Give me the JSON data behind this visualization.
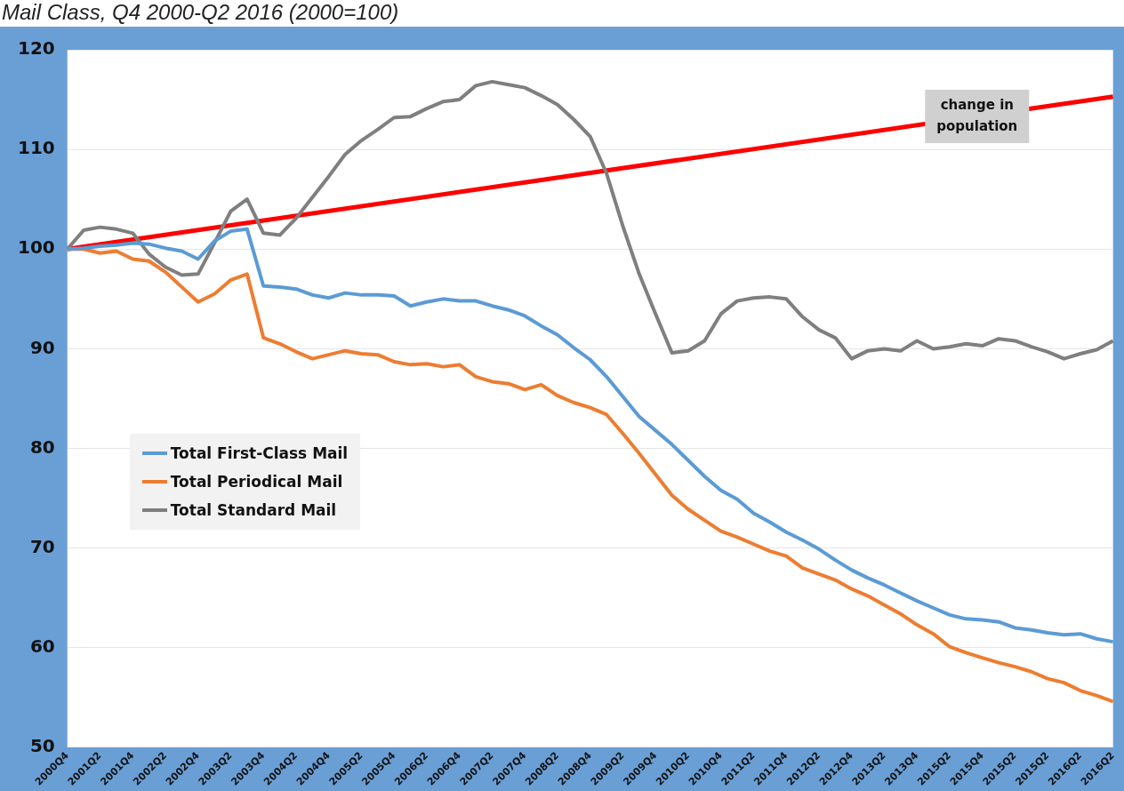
{
  "chart_data": {
    "type": "line",
    "title": "Mail Class, Q4 2000-Q2 2016 (2000=100)",
    "categories": [
      "2000Q4",
      null,
      "2001Q2",
      null,
      "2001Q4",
      null,
      "2002Q2",
      null,
      "2002Q4",
      null,
      "2003Q2",
      null,
      "2003Q4",
      null,
      "2004Q2",
      null,
      "2004Q4",
      null,
      "2005Q2",
      null,
      "2005Q4",
      null,
      "2006Q2",
      null,
      "2006Q4",
      null,
      "2007Q2",
      null,
      "2007Q4",
      null,
      "2008Q2",
      null,
      "2008Q4",
      null,
      "2009Q2",
      null,
      "2009Q4",
      null,
      "2010Q2",
      null,
      "2010Q4",
      null,
      "2011Q2",
      null,
      "2011Q4",
      null,
      "2012Q2",
      null,
      "2012Q4",
      null,
      "2013Q2",
      null,
      "2013Q4",
      null,
      "2015Q2",
      null,
      "2015Q4",
      null,
      "2015Q2",
      null,
      "2015Q2",
      null,
      "2016Q2",
      null,
      "2016Q2"
    ],
    "series": [
      {
        "name": "Total First-Class Mail",
        "color": "#5b9bd5",
        "values": [
          100,
          100.1,
          100.3,
          100.4,
          100.6,
          100.5,
          100.1,
          99.8,
          99.0,
          100.8,
          101.8,
          102.0,
          96.3,
          96.2,
          96.0,
          95.4,
          95.1,
          95.6,
          95.4,
          95.4,
          95.3,
          94.3,
          94.7,
          95.0,
          94.8,
          94.8,
          94.3,
          93.9,
          93.3,
          92.3,
          91.4,
          90.1,
          88.9,
          87.2,
          85.2,
          83.2,
          81.8,
          80.4,
          78.8,
          77.2,
          75.8,
          74.9,
          73.5,
          72.6,
          71.6,
          70.8,
          69.9,
          68.8,
          67.8,
          67.0,
          66.3,
          65.5,
          64.7,
          64.0,
          63.3,
          62.9,
          62.8,
          62.6,
          62.0,
          61.8,
          61.5,
          61.3,
          61.4,
          60.9,
          60.6
        ]
      },
      {
        "name": "Total Periodical Mail",
        "color": "#ed7d31",
        "values": [
          100,
          100,
          99.6,
          99.8,
          99.0,
          98.8,
          97.7,
          96.2,
          94.7,
          95.5,
          96.9,
          97.5,
          91.1,
          90.5,
          89.7,
          89.0,
          89.4,
          89.8,
          89.5,
          89.4,
          88.7,
          88.4,
          88.5,
          88.2,
          88.4,
          87.2,
          86.7,
          86.5,
          85.9,
          86.4,
          85.3,
          84.6,
          84.1,
          83.4,
          81.5,
          79.5,
          77.4,
          75.3,
          73.9,
          72.8,
          71.7,
          71.1,
          70.4,
          69.7,
          69.2,
          68.0,
          67.4,
          66.8,
          65.9,
          65.2,
          64.3,
          63.4,
          62.3,
          61.4,
          60.1,
          59.5,
          59.0,
          58.5,
          58.1,
          57.6,
          56.9,
          56.5,
          55.7,
          55.2,
          54.6
        ]
      },
      {
        "name": "Total Standard Mail",
        "color": "#7f7f7f",
        "values": [
          100,
          101.9,
          102.2,
          102.0,
          101.6,
          99.5,
          98.2,
          97.4,
          97.5,
          100.6,
          103.8,
          105.0,
          101.6,
          101.4,
          103.1,
          105.2,
          107.3,
          109.5,
          110.9,
          112.0,
          113.2,
          113.3,
          114.1,
          114.8,
          115.0,
          116.4,
          116.8,
          116.5,
          116.2,
          115.4,
          114.5,
          113.0,
          111.3,
          107.6,
          102.3,
          97.5,
          93.5,
          89.6,
          89.8,
          90.8,
          93.5,
          94.8,
          95.1,
          95.2,
          95.0,
          93.2,
          91.9,
          91.1,
          89.0,
          89.8,
          90.0,
          89.8,
          90.8,
          90.0,
          90.2,
          90.5,
          90.3,
          91.0,
          90.8,
          90.2,
          89.7,
          89.0,
          89.5,
          89.9,
          90.8
        ]
      },
      {
        "name": "change in population",
        "color": "#ff0000",
        "values": [
          100,
          null,
          null,
          null,
          null,
          null,
          null,
          null,
          null,
          null,
          null,
          null,
          null,
          null,
          null,
          null,
          null,
          null,
          null,
          null,
          null,
          null,
          null,
          null,
          null,
          null,
          null,
          null,
          null,
          null,
          null,
          null,
          null,
          null,
          null,
          null,
          null,
          null,
          null,
          null,
          null,
          null,
          null,
          null,
          null,
          null,
          null,
          null,
          null,
          null,
          null,
          null,
          null,
          null,
          null,
          null,
          null,
          null,
          null,
          null,
          null,
          null,
          null,
          null,
          115.3
        ]
      }
    ],
    "ylim": [
      50,
      120
    ],
    "yticks": [
      50,
      60,
      70,
      80,
      90,
      100,
      110,
      120
    ],
    "grid": "y",
    "legend": "left",
    "marker": "none",
    "line_style": "solid"
  }
}
